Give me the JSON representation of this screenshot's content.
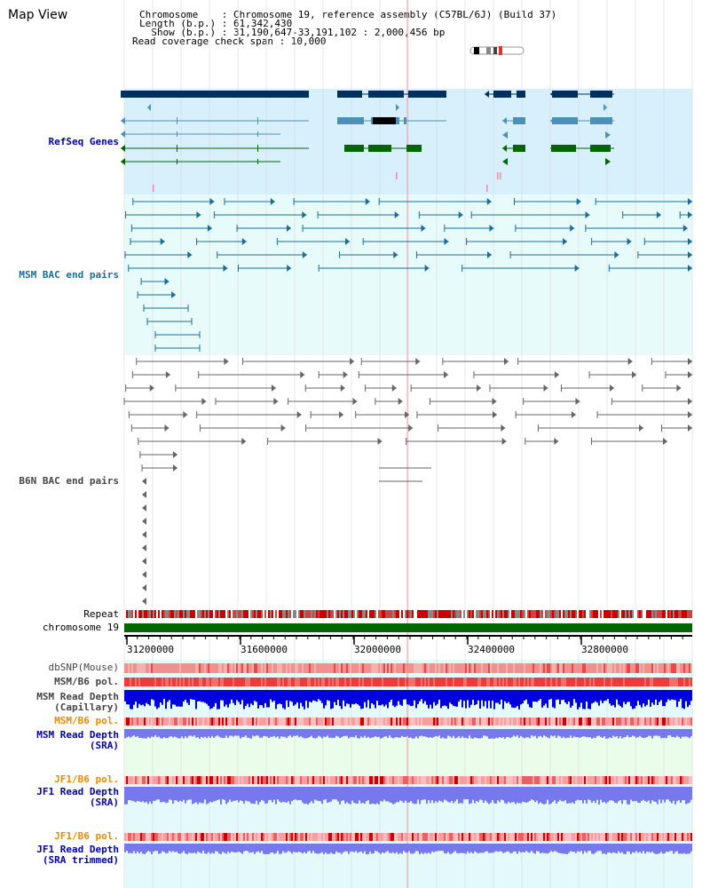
{
  "header": {
    "title": "Map View",
    "info": [
      "Chromosome    : Chromosome 19, reference assembly (C57BL/6J) (Build 37)",
      "Length (b.p.) : 61,342,430",
      "  Show (b.p.) : 31,190,647-33,191,102 : 2,000,456 bp",
      "Read coverage check span : 10,000"
    ]
  },
  "tracks": {
    "refseq": "RefSeq Genes",
    "msm_bac": "MSM BAC end pairs",
    "b6n_bac": "B6N BAC end pairs",
    "repeat": "Repeat",
    "chromosome": "chromosome 19",
    "dbsnp": "dbSNP(Mouse)",
    "msm_b6_pol_1": "MSM/B6 pol.",
    "msm_depth_cap": "MSM Read Depth\n(Capillary)",
    "msm_b6_pol_2": "MSM/B6 pol.",
    "msm_depth_sra": "MSM Read Depth\n(SRA)",
    "jf1_b6_pol_1": "JF1/B6 pol.",
    "jf1_depth_sra": "JF1 Read Depth\n(SRA)",
    "jf1_b6_pol_2": "JF1/B6 pol.",
    "jf1_depth_trim": "JF1 Read Depth\n(SRA trimmed)"
  },
  "axis": {
    "ticks": [
      "31200000",
      "31600000",
      "32000000",
      "32400000",
      "32800000"
    ]
  },
  "colors": {
    "refseq_bg": "#d8f0fc",
    "msm_bg": "#e8fbfb",
    "gene_dark": "#00305e",
    "gene_mid": "#4a90b8",
    "gene_green": "#006600",
    "msm_line": "#1a6e96",
    "b6n_line": "#666666",
    "chrom_bar": "#006600",
    "repeat_red": "#cc0000",
    "depth_blue": "#0000dd",
    "depth_light": "#7777ee",
    "label_blue": "#0000aa",
    "label_orange": "#ee8800",
    "label_gray": "#444444",
    "label_teal": "#1a6e96"
  }
}
